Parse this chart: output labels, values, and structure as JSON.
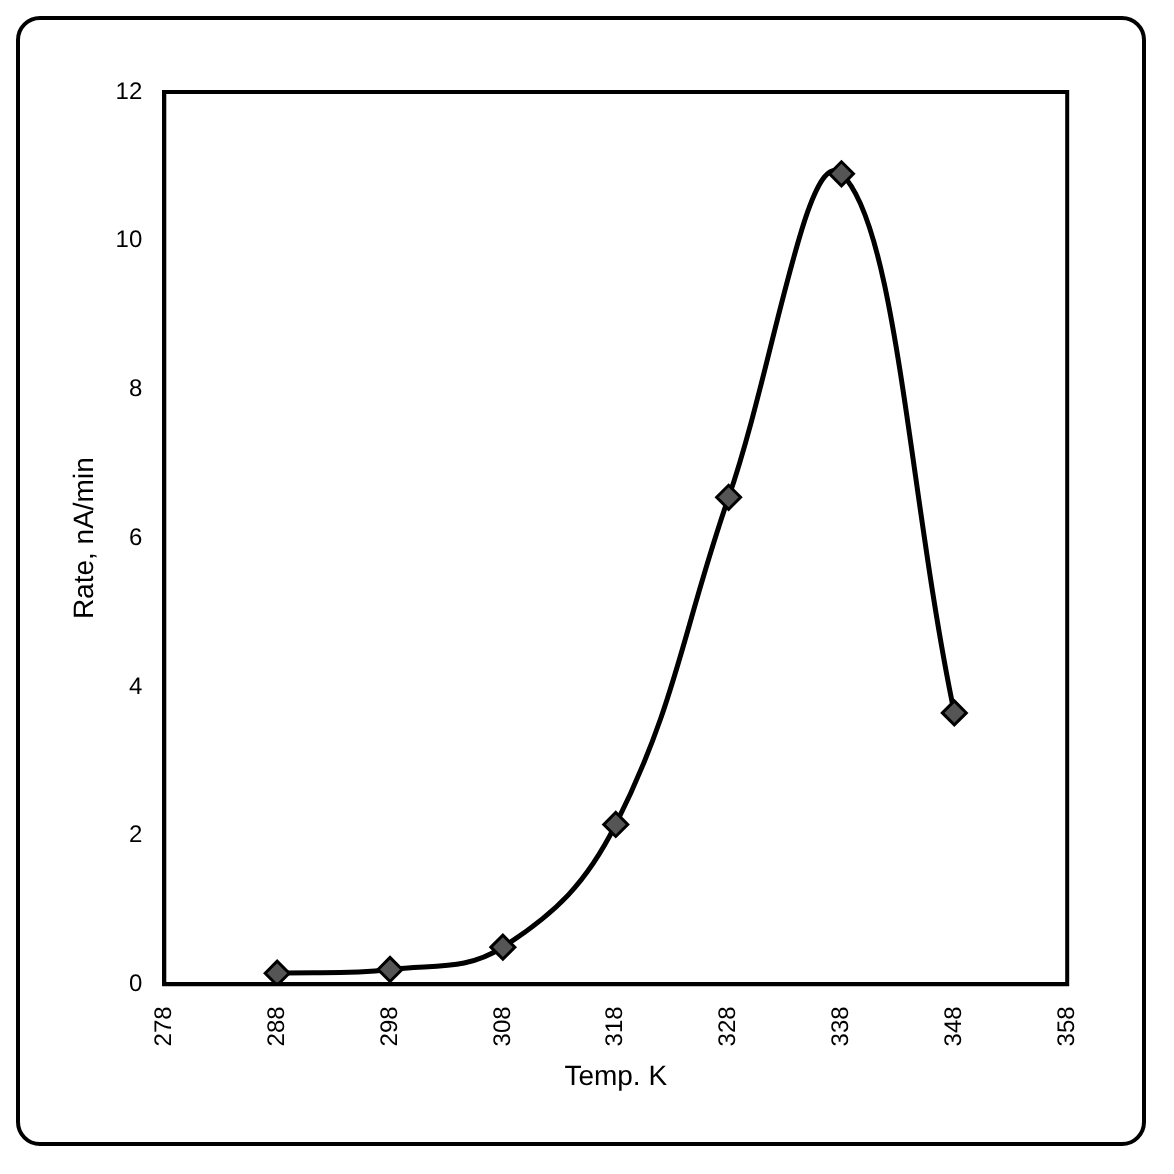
{
  "chart_data": {
    "type": "line",
    "xlabel": "Temp. K",
    "ylabel": "Rate, nA/min",
    "x": [
      288,
      298,
      308,
      318,
      328,
      338,
      348
    ],
    "series": [
      {
        "color": "#000000",
        "values": [
          0.15,
          0.2,
          0.5,
          2.15,
          6.55,
          10.9,
          3.65
        ]
      }
    ],
    "xlim": [
      278,
      358
    ],
    "xticks": [
      278,
      288,
      298,
      308,
      318,
      328,
      338,
      348,
      358
    ],
    "ylim": [
      0,
      12
    ],
    "yticks": [
      0,
      2,
      4,
      6,
      8,
      10,
      12
    ],
    "grid": false,
    "legend": false,
    "marker": "diamond",
    "line_style": "solid"
  }
}
